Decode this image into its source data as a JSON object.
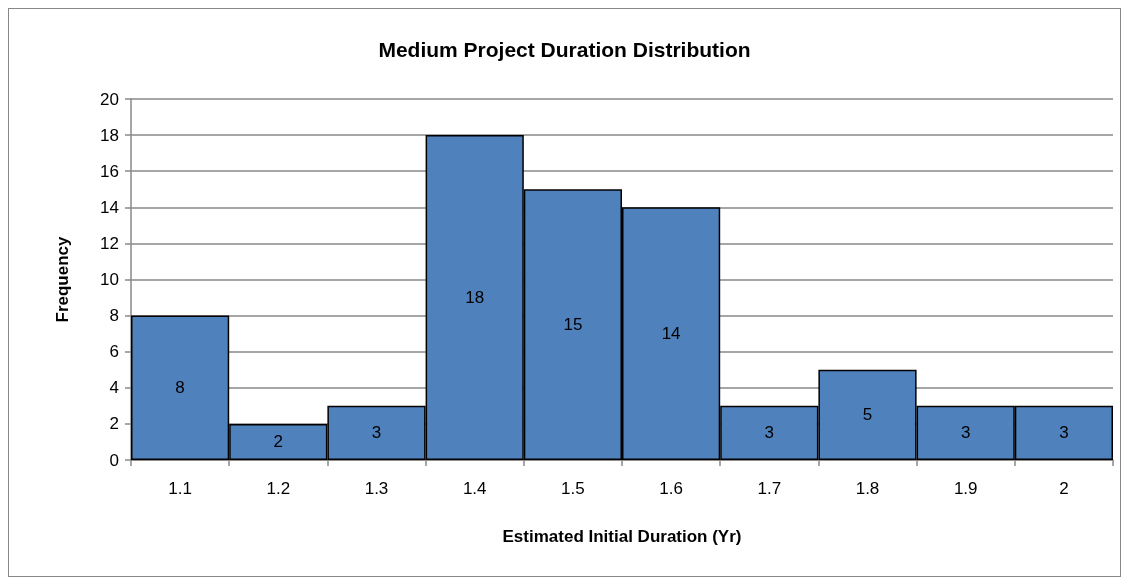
{
  "chart_data": {
    "type": "bar",
    "title": "Medium Project Duration Distribution",
    "xlabel": "Estimated Initial Duration (Yr)",
    "ylabel": "Frequency",
    "categories": [
      "1.1",
      "1.2",
      "1.3",
      "1.4",
      "1.5",
      "1.6",
      "1.7",
      "1.8",
      "1.9",
      "2"
    ],
    "values": [
      8,
      2,
      3,
      18,
      15,
      14,
      3,
      5,
      3,
      3
    ],
    "color": "#4f81bd",
    "ylim": [
      0,
      20
    ],
    "yticks": [
      0,
      2,
      4,
      6,
      8,
      10,
      12,
      14,
      16,
      18,
      20
    ],
    "grid": "y",
    "data_labels": true
  }
}
